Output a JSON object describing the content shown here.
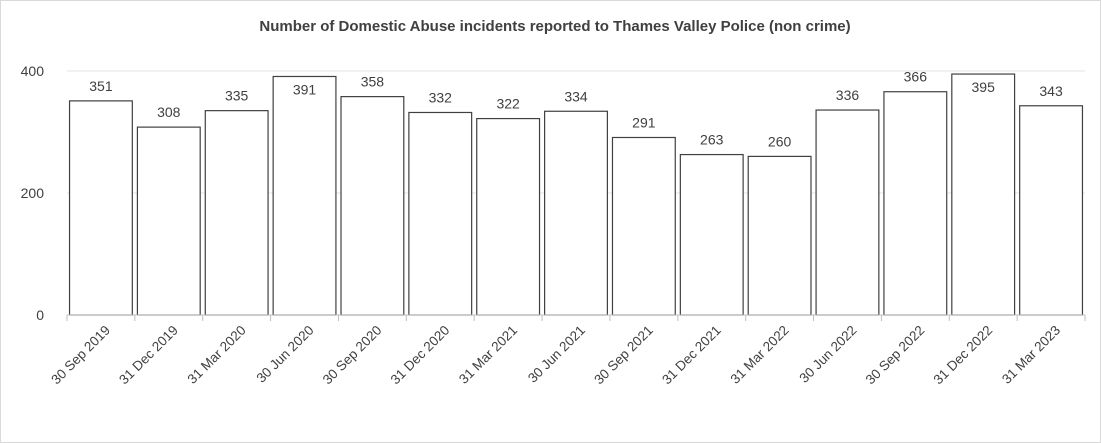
{
  "chart_data": {
    "type": "bar",
    "title": "Number of Domestic Abuse incidents reported to Thames Valley Police (non crime)",
    "xlabel": "",
    "ylabel": "",
    "categories": [
      "30 Sep 2019",
      "31 Dec 2019",
      "31 Mar 2020",
      "30 Jun 2020",
      "30 Sep 2020",
      "31 Dec 2020",
      "31 Mar 2021",
      "30 Jun 2021",
      "30 Sep 2021",
      "31 Dec 2021",
      "31 Mar 2022",
      "30 Jun 2022",
      "30 Sep 2022",
      "31 Dec 2022",
      "31 Mar 2023"
    ],
    "values": [
      351,
      308,
      335,
      391,
      358,
      332,
      322,
      334,
      291,
      263,
      260,
      336,
      366,
      395,
      343
    ],
    "ylim": [
      0,
      400
    ],
    "yticks": [
      0,
      200,
      400
    ],
    "grid": true,
    "legend": "none",
    "colors": {
      "bar_fill": "#ffffff",
      "bar_stroke": "#404040",
      "text": "#404040",
      "grid": "#e3e3e3"
    }
  }
}
